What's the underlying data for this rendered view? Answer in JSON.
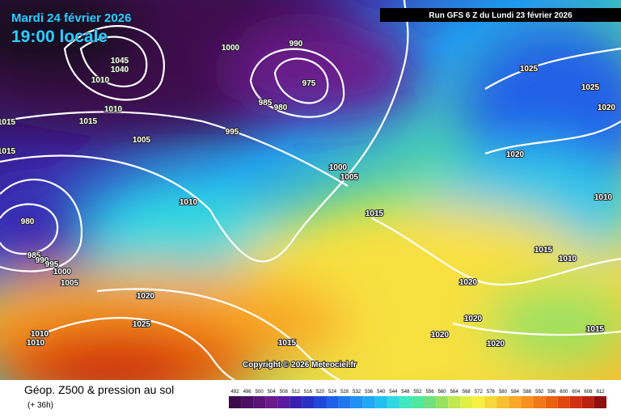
{
  "header": {
    "date": "Mardi 24 février 2026",
    "time": "19:00 locale",
    "run": "Run GFS 6 Z du Lundi 23 février 2026"
  },
  "copyright": "Copyright © 2026 Meteociel.fr",
  "footer": {
    "title": "Géop. Z500 & pression au sol",
    "lead": "(+ 36h)"
  },
  "isobar_labels": [
    "990",
    "1000",
    "975",
    "985",
    "980",
    "1045",
    "1040",
    "1010",
    "1010",
    "1015",
    "1015",
    "1015",
    "995",
    "1005",
    "1000",
    "1005",
    "1010",
    "1015",
    "980",
    "985",
    "990",
    "995",
    "1000",
    "1005",
    "1020",
    "1025",
    "1010",
    "1010",
    "1015",
    "1020",
    "1020",
    "1020",
    "1020",
    "1015",
    "1010",
    "1015",
    "1010",
    "1020",
    "1025",
    "1025",
    "1020"
  ],
  "scale": {
    "labels": [
      "492",
      "496",
      "500",
      "504",
      "508",
      "512",
      "516",
      "520",
      "524",
      "528",
      "532",
      "536",
      "540",
      "544",
      "548",
      "552",
      "556",
      "560",
      "564",
      "568",
      "572",
      "576",
      "580",
      "584",
      "588",
      "592",
      "596",
      "600",
      "604",
      "608",
      "612"
    ],
    "colors": [
      "#3c0a4c",
      "#4a0e62",
      "#5a1478",
      "#6a1a8c",
      "#5a1aa0",
      "#3a20b0",
      "#2a30c4",
      "#2048d8",
      "#2060e8",
      "#2078f0",
      "#2090f4",
      "#20a8f4",
      "#20c0f0",
      "#30d8e0",
      "#40e8c0",
      "#50e8a0",
      "#70e080",
      "#98e060",
      "#c0e850",
      "#e0f040",
      "#f8f040",
      "#f8d838",
      "#f8c030",
      "#f8a828",
      "#f89020",
      "#f07818",
      "#e86010",
      "#e04810",
      "#d03010",
      "#b82010",
      "#901010"
    ]
  }
}
